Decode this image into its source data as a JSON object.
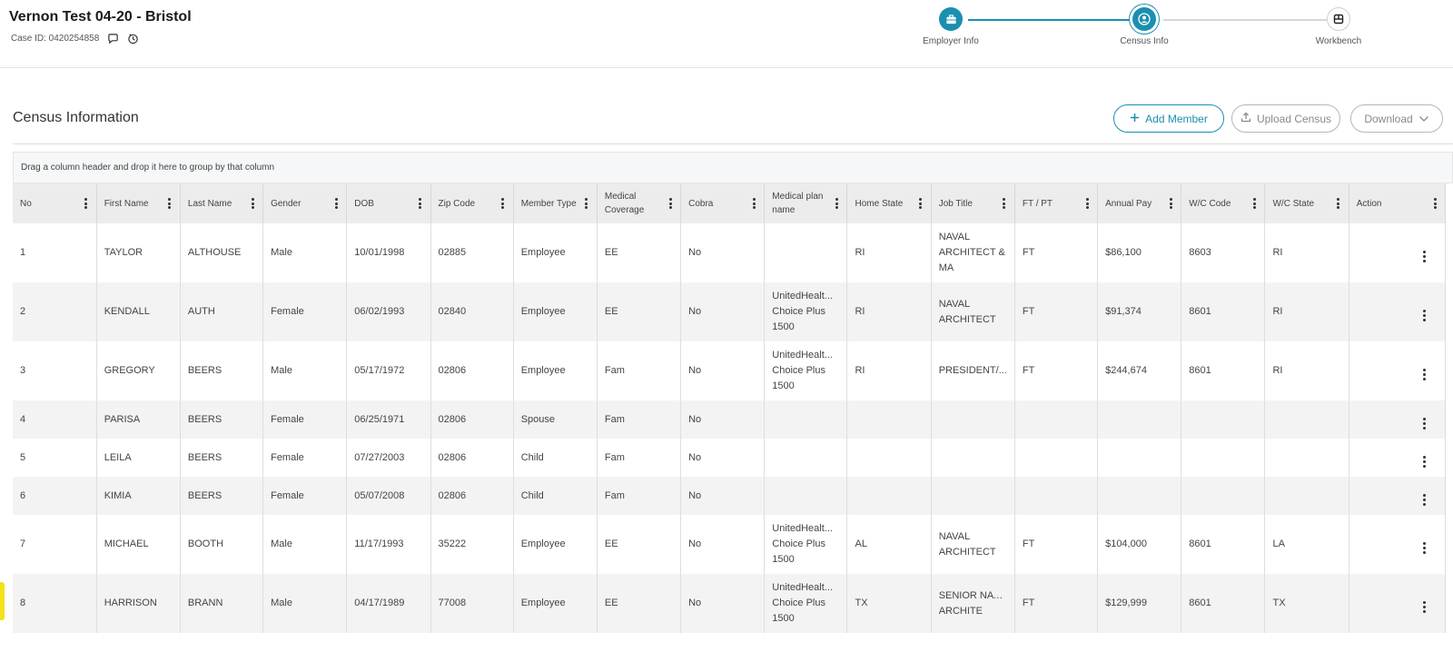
{
  "header": {
    "title": "Vernon Test 04-20 - Bristol",
    "case_id": "Case ID: 0420254858"
  },
  "stepper": {
    "steps": [
      {
        "label": "Employer Info",
        "state": "done",
        "icon": "briefcase-icon"
      },
      {
        "label": "Census Info",
        "state": "current",
        "icon": "user-circle-icon"
      },
      {
        "label": "Workbench",
        "state": "todo",
        "icon": "workbench-icon"
      }
    ]
  },
  "section": {
    "title": "Census Information",
    "add_label": "Add Member",
    "upload_label": "Upload Census",
    "download_label": "Download"
  },
  "grid": {
    "group_hint": "Drag a column header and drop it here to group by that column",
    "columns": [
      "No",
      "First Name",
      "Last Name",
      "Gender",
      "DOB",
      "Zip Code",
      "Member Type",
      "Medical Coverage",
      "Cobra",
      "Medical plan name",
      "Home State",
      "Job Title",
      "FT / PT",
      "Annual Pay",
      "W/C Code",
      "W/C State",
      "Action"
    ],
    "rows": [
      {
        "no": "1",
        "first": "TAYLOR",
        "last": "ALTHOUSE",
        "gender": "Male",
        "dob": "10/01/1998",
        "zip": "02885",
        "type": "Employee",
        "coverage": "EE",
        "cobra": "No",
        "plan": [
          "",
          "",
          ""
        ],
        "state": "RI",
        "job": [
          "NAVAL",
          "ARCHITECT &",
          "MA"
        ],
        "ftpt": "FT",
        "pay": "$86,100",
        "wc_code": "8603",
        "wc_state": "RI"
      },
      {
        "no": "2",
        "first": "KENDALL",
        "last": "AUTH",
        "gender": "Female",
        "dob": "06/02/1993",
        "zip": "02840",
        "type": "Employee",
        "coverage": "EE",
        "cobra": "No",
        "plan": [
          "UnitedHealt...",
          "Choice Plus",
          "1500"
        ],
        "state": "RI",
        "job": [
          "NAVAL",
          "ARCHITECT",
          ""
        ],
        "ftpt": "FT",
        "pay": "$91,374",
        "wc_code": "8601",
        "wc_state": "RI"
      },
      {
        "no": "3",
        "first": "GREGORY",
        "last": "BEERS",
        "gender": "Male",
        "dob": "05/17/1972",
        "zip": "02806",
        "type": "Employee",
        "coverage": "Fam",
        "cobra": "No",
        "plan": [
          "UnitedHealt...",
          "Choice Plus",
          "1500"
        ],
        "state": "RI",
        "job": [
          "PRESIDENT/...",
          "",
          ""
        ],
        "ftpt": "FT",
        "pay": "$244,674",
        "wc_code": "8601",
        "wc_state": "RI"
      },
      {
        "no": "4",
        "first": "PARISA",
        "last": "BEERS",
        "gender": "Female",
        "dob": "06/25/1971",
        "zip": "02806",
        "type": "Spouse",
        "coverage": "Fam",
        "cobra": "No",
        "plan": [
          "",
          "",
          ""
        ],
        "state": "",
        "job": [
          "",
          "",
          ""
        ],
        "ftpt": "",
        "pay": "",
        "wc_code": "",
        "wc_state": ""
      },
      {
        "no": "5",
        "first": "LEILA",
        "last": "BEERS",
        "gender": "Female",
        "dob": "07/27/2003",
        "zip": "02806",
        "type": "Child",
        "coverage": "Fam",
        "cobra": "No",
        "plan": [
          "",
          "",
          ""
        ],
        "state": "",
        "job": [
          "",
          "",
          ""
        ],
        "ftpt": "",
        "pay": "",
        "wc_code": "",
        "wc_state": ""
      },
      {
        "no": "6",
        "first": "KIMIA",
        "last": "BEERS",
        "gender": "Female",
        "dob": "05/07/2008",
        "zip": "02806",
        "type": "Child",
        "coverage": "Fam",
        "cobra": "No",
        "plan": [
          "",
          "",
          ""
        ],
        "state": "",
        "job": [
          "",
          "",
          ""
        ],
        "ftpt": "",
        "pay": "",
        "wc_code": "",
        "wc_state": ""
      },
      {
        "no": "7",
        "first": "MICHAEL",
        "last": "BOOTH",
        "gender": "Male",
        "dob": "11/17/1993",
        "zip": "35222",
        "type": "Employee",
        "coverage": "EE",
        "cobra": "No",
        "plan": [
          "UnitedHealt...",
          "Choice Plus",
          "1500"
        ],
        "state": "AL",
        "job": [
          "NAVAL",
          "ARCHITECT",
          ""
        ],
        "ftpt": "FT",
        "pay": "$104,000",
        "wc_code": "8601",
        "wc_state": "LA"
      },
      {
        "no": "8",
        "first": "HARRISON",
        "last": "BRANN",
        "gender": "Male",
        "dob": "04/17/1989",
        "zip": "77008",
        "type": "Employee",
        "coverage": "EE",
        "cobra": "No",
        "plan": [
          "UnitedHealt...",
          "Choice Plus",
          "1500"
        ],
        "state": "TX",
        "job": [
          "SENIOR NAVAL",
          "ARCHITE",
          ""
        ],
        "ftpt": "FT",
        "pay": "$129,999",
        "wc_code": "8601",
        "wc_state": "TX"
      }
    ]
  }
}
